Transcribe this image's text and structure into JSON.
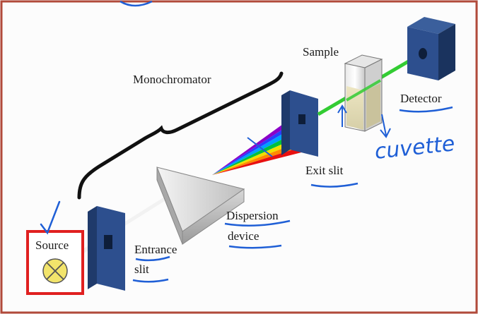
{
  "labels": {
    "monochromator": "Monochromator",
    "sample": "Sample",
    "detector": "Detector",
    "exit_slit": "Exit slit",
    "dispersion_line1": "Dispersion",
    "dispersion_line2": "device",
    "source": "Source",
    "entrance_line1": "Entrance",
    "entrance_line2": "slit"
  },
  "annotations": {
    "handwritten_cuvette": "cuvette"
  },
  "colors": {
    "frame": "#b14a3a",
    "annotation_ink": "#1f5fd6",
    "source_highlight": "#e02020",
    "light_beam": "#33cc33",
    "slit_blue": "#2d4f8e",
    "lamp_fill": "#f2e46b"
  }
}
